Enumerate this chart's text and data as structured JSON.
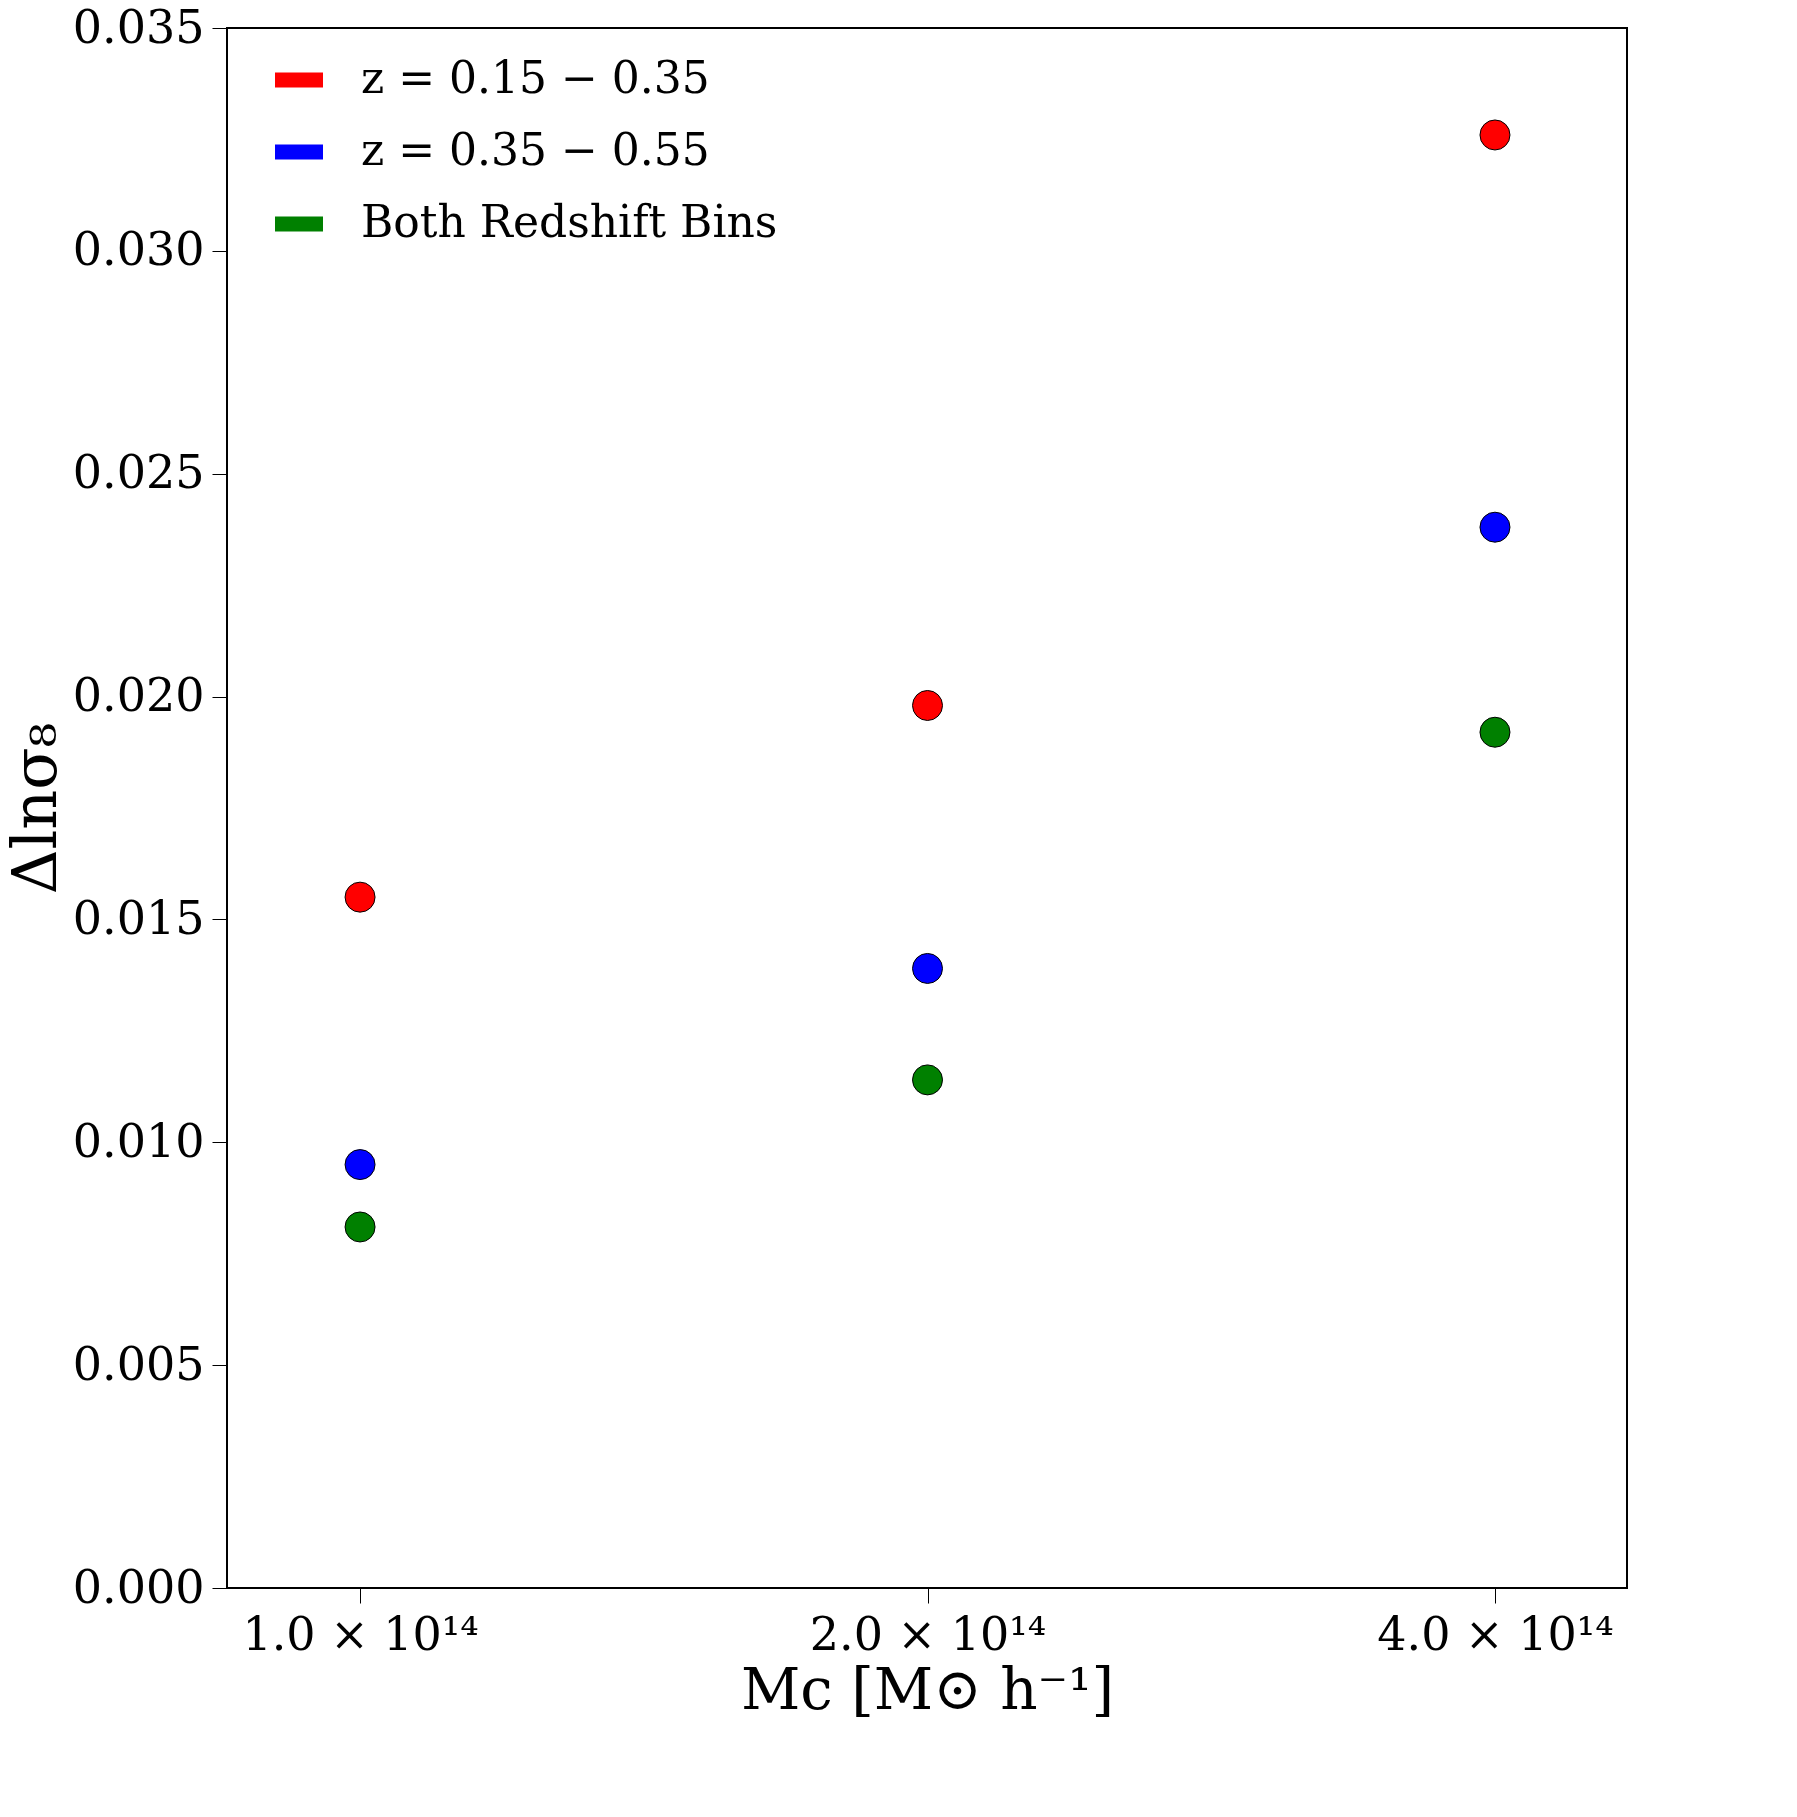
{
  "chart_data": {
    "type": "scatter",
    "xlabel": "Mc [M⊙ h⁻¹]",
    "ylabel": "Δlnσ₈",
    "x": [
      100000000000000.0,
      200000000000000.0,
      400000000000000.0
    ],
    "series": [
      {
        "name": "z = 0.15 − 0.35",
        "color": "#ff0000",
        "values": [
          0.0155,
          0.0198,
          0.0326
        ]
      },
      {
        "name": "z = 0.35 − 0.55",
        "color": "#0000ff",
        "values": [
          0.0095,
          0.0139,
          0.0238
        ]
      },
      {
        "name": "Both Redshift Bins",
        "color": "#008000",
        "values": [
          0.0081,
          0.0114,
          0.0192
        ]
      }
    ],
    "log": "x",
    "xlim": [
      85000000000000.0,
      470000000000000.0
    ],
    "xticks": [
      {
        "value": 100000000000000.0,
        "label": "1.0 × 10¹⁴"
      },
      {
        "value": 200000000000000.0,
        "label": "2.0 × 10¹⁴"
      },
      {
        "value": 400000000000000.0,
        "label": "4.0 × 10¹⁴"
      }
    ],
    "ylim": [
      0,
      0.035
    ],
    "yticks": [
      {
        "value": 0,
        "label": "0.000"
      },
      {
        "value": 0.005,
        "label": "0.005"
      },
      {
        "value": 0.01,
        "label": "0.010"
      },
      {
        "value": 0.015,
        "label": "0.015"
      },
      {
        "value": 0.02,
        "label": "0.020"
      },
      {
        "value": 0.025,
        "label": "0.025"
      },
      {
        "value": 0.03,
        "label": "0.030"
      },
      {
        "value": 0.035,
        "label": "0.035"
      }
    ],
    "grid": false,
    "legend": "top left",
    "marker": "circle"
  }
}
